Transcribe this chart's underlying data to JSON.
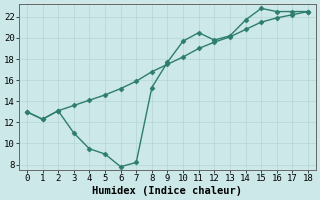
{
  "title": "",
  "xlabel": "Humidex (Indice chaleur)",
  "ylabel": "",
  "background_color": "#cce8e8",
  "line_color": "#2d7d6e",
  "x_line1": [
    0,
    1,
    2,
    3,
    4,
    5,
    6,
    7,
    8,
    9,
    10,
    11,
    12,
    13,
    14,
    15,
    16,
    17,
    18
  ],
  "y_line1": [
    13.0,
    12.3,
    13.1,
    11.0,
    9.5,
    9.0,
    7.8,
    8.2,
    15.3,
    17.7,
    19.7,
    20.5,
    19.8,
    20.2,
    21.7,
    22.8,
    22.5,
    22.5,
    22.5
  ],
  "x_line2": [
    0,
    1,
    2,
    3,
    4,
    5,
    6,
    7,
    8,
    9,
    10,
    11,
    12,
    13,
    14,
    15,
    16,
    17,
    18
  ],
  "y_line2": [
    13.0,
    12.3,
    13.1,
    13.6,
    14.1,
    14.6,
    15.2,
    15.9,
    16.8,
    17.5,
    18.2,
    19.0,
    19.6,
    20.1,
    20.8,
    21.5,
    21.9,
    22.2,
    22.5
  ],
  "ylim": [
    7.5,
    23.2
  ],
  "xlim": [
    -0.5,
    18.5
  ],
  "yticks": [
    8,
    10,
    12,
    14,
    16,
    18,
    20,
    22
  ],
  "xticks": [
    0,
    1,
    2,
    3,
    4,
    5,
    6,
    7,
    8,
    9,
    10,
    11,
    12,
    13,
    14,
    15,
    16,
    17,
    18
  ],
  "grid_color": "#b8d8d8",
  "marker": "D",
  "marker_size": 2.5,
  "line_width": 1.0,
  "xlabel_fontsize": 7.5,
  "tick_fontsize": 6.5
}
